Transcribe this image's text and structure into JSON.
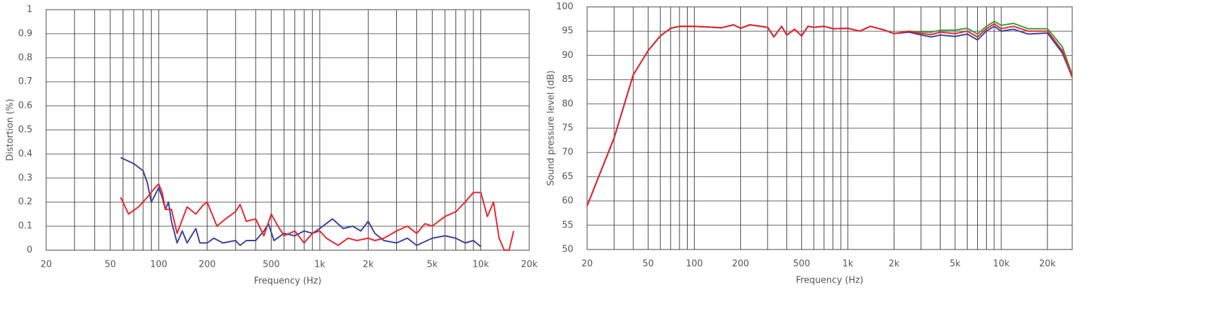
{
  "chart_data": [
    {
      "type": "line",
      "x_label": "Frequency (Hz)",
      "y_label": "Distortion (%)",
      "log_x": true,
      "xlim": [
        20,
        20000
      ],
      "ylim": [
        0,
        1
      ],
      "xticks": [
        20,
        50,
        {
          "value": 100,
          "label": "100"
        },
        200,
        500,
        {
          "value": 1000,
          "label": "1k"
        },
        {
          "value": 2000,
          "label": "2k"
        },
        {
          "value": 5000,
          "label": "5k"
        },
        {
          "value": 10000,
          "label": "10k"
        },
        {
          "value": 20000,
          "label": "20k"
        }
      ],
      "yticks": [
        0,
        0.1,
        0.2,
        0.3,
        0.4,
        0.5,
        0.6,
        0.7,
        0.8,
        0.9,
        1
      ],
      "xgrid": [
        20,
        30,
        40,
        50,
        60,
        70,
        80,
        90,
        100,
        200,
        300,
        400,
        500,
        600,
        700,
        800,
        900,
        1000,
        2000,
        3000,
        4000,
        5000,
        6000,
        7000,
        8000,
        9000,
        10000,
        20000
      ],
      "series": [
        {
          "color": "#3a3fa0",
          "x": [
            58,
            70,
            80,
            85,
            90,
            100,
            105,
            110,
            115,
            120,
            130,
            140,
            150,
            170,
            180,
            200,
            220,
            250,
            300,
            320,
            350,
            400,
            450,
            480,
            520,
            600,
            700,
            800,
            900,
            1000,
            1200,
            1400,
            1600,
            1800,
            2000,
            2200,
            2500,
            3000,
            3500,
            4000,
            5000,
            6000,
            7000,
            8000,
            9000,
            10000
          ],
          "values": [
            0.385,
            0.36,
            0.33,
            0.28,
            0.2,
            0.26,
            0.22,
            0.17,
            0.2,
            0.12,
            0.03,
            0.08,
            0.03,
            0.09,
            0.03,
            0.03,
            0.05,
            0.03,
            0.04,
            0.02,
            0.04,
            0.04,
            0.08,
            0.11,
            0.04,
            0.07,
            0.06,
            0.08,
            0.07,
            0.09,
            0.13,
            0.09,
            0.1,
            0.08,
            0.12,
            0.07,
            0.04,
            0.03,
            0.05,
            0.02,
            0.05,
            0.06,
            0.05,
            0.03,
            0.04,
            0.015
          ]
        },
        {
          "color": "#e8242a",
          "x": [
            58,
            65,
            75,
            85,
            95,
            100,
            105,
            110,
            120,
            130,
            150,
            170,
            190,
            200,
            230,
            260,
            300,
            320,
            350,
            400,
            450,
            500,
            550,
            600,
            700,
            800,
            900,
            1000,
            1100,
            1300,
            1500,
            1700,
            2000,
            2200,
            2500,
            3000,
            3500,
            4000,
            4500,
            5000,
            6000,
            7000,
            8000,
            9000,
            10000,
            11000,
            12000,
            13000,
            14000,
            15000,
            16000
          ],
          "values": [
            0.22,
            0.15,
            0.18,
            0.22,
            0.26,
            0.275,
            0.24,
            0.17,
            0.17,
            0.07,
            0.18,
            0.15,
            0.19,
            0.2,
            0.1,
            0.13,
            0.16,
            0.19,
            0.12,
            0.13,
            0.06,
            0.15,
            0.1,
            0.06,
            0.08,
            0.03,
            0.07,
            0.08,
            0.05,
            0.02,
            0.05,
            0.04,
            0.05,
            0.04,
            0.05,
            0.08,
            0.1,
            0.07,
            0.11,
            0.1,
            0.14,
            0.16,
            0.2,
            0.24,
            0.24,
            0.14,
            0.2,
            0.05,
            0,
            0,
            0.08
          ]
        }
      ]
    },
    {
      "type": "line",
      "x_label": "Frequency (Hz)",
      "y_label": "Sound pressure level (dB)",
      "log_x": true,
      "xlim": [
        20,
        29000
      ],
      "ylim": [
        50,
        100
      ],
      "xticks": [
        20,
        50,
        {
          "value": 100,
          "label": "100"
        },
        200,
        500,
        {
          "value": 1000,
          "label": "1k"
        },
        {
          "value": 2000,
          "label": "2k"
        },
        {
          "value": 5000,
          "label": "5k"
        },
        {
          "value": 10000,
          "label": "10k"
        },
        {
          "value": 20000,
          "label": "20k"
        }
      ],
      "yticks": [
        50,
        55,
        60,
        65,
        70,
        75,
        80,
        85,
        90,
        95,
        100
      ],
      "xgrid": [
        20,
        30,
        40,
        50,
        60,
        70,
        80,
        90,
        100,
        200,
        300,
        400,
        500,
        600,
        700,
        800,
        900,
        1000,
        2000,
        3000,
        4000,
        5000,
        6000,
        7000,
        8000,
        9000,
        10000,
        20000
      ],
      "x": [
        20,
        30,
        40,
        50,
        60,
        70,
        80,
        100,
        150,
        180,
        200,
        230,
        300,
        330,
        370,
        400,
        450,
        500,
        550,
        600,
        700,
        800,
        1000,
        1200,
        1400,
        1700,
        2000,
        2500,
        3000,
        3500,
        4000,
        5000,
        6000,
        7000,
        8000,
        9000,
        10000,
        12000,
        15000,
        20000,
        25000,
        29000
      ],
      "series": [
        {
          "color": "#3a9a3a",
          "values": [
            59,
            73,
            86,
            91,
            94,
            95.6,
            96,
            96,
            95.7,
            96.3,
            95.6,
            96.3,
            95.8,
            93.8,
            96,
            94.2,
            95.4,
            94,
            96,
            95.8,
            96,
            95.5,
            95.6,
            95,
            96,
            95.3,
            94.5,
            95,
            94.8,
            94.8,
            95.2,
            95.2,
            95.6,
            94.4,
            96,
            97,
            96.2,
            96.6,
            95.5,
            95.5,
            91.8,
            86
          ]
        },
        {
          "color": "#3a3fa0",
          "values": [
            59,
            73,
            86,
            91,
            94,
            95.6,
            96,
            96,
            95.7,
            96.3,
            95.6,
            96.3,
            95.8,
            93.8,
            96,
            94.2,
            95.4,
            94,
            96,
            95.8,
            96,
            95.5,
            95.6,
            95,
            96,
            95.3,
            94.5,
            94.8,
            94.2,
            93.8,
            94.2,
            93.9,
            94.4,
            93.2,
            95,
            96,
            95,
            95.4,
            94.4,
            94.6,
            90.5,
            85.5
          ]
        },
        {
          "color": "#e8242a",
          "values": [
            59,
            73,
            86,
            91,
            94,
            95.6,
            96,
            96,
            95.7,
            96.3,
            95.6,
            96.3,
            95.8,
            93.8,
            96,
            94.2,
            95.4,
            94,
            96,
            95.8,
            96,
            95.5,
            95.6,
            95,
            96,
            95.3,
            94.5,
            95,
            94.5,
            94.3,
            94.8,
            94.5,
            95,
            93.8,
            95.5,
            96.5,
            95.5,
            96,
            95,
            95,
            91,
            85.5
          ]
        }
      ]
    }
  ]
}
